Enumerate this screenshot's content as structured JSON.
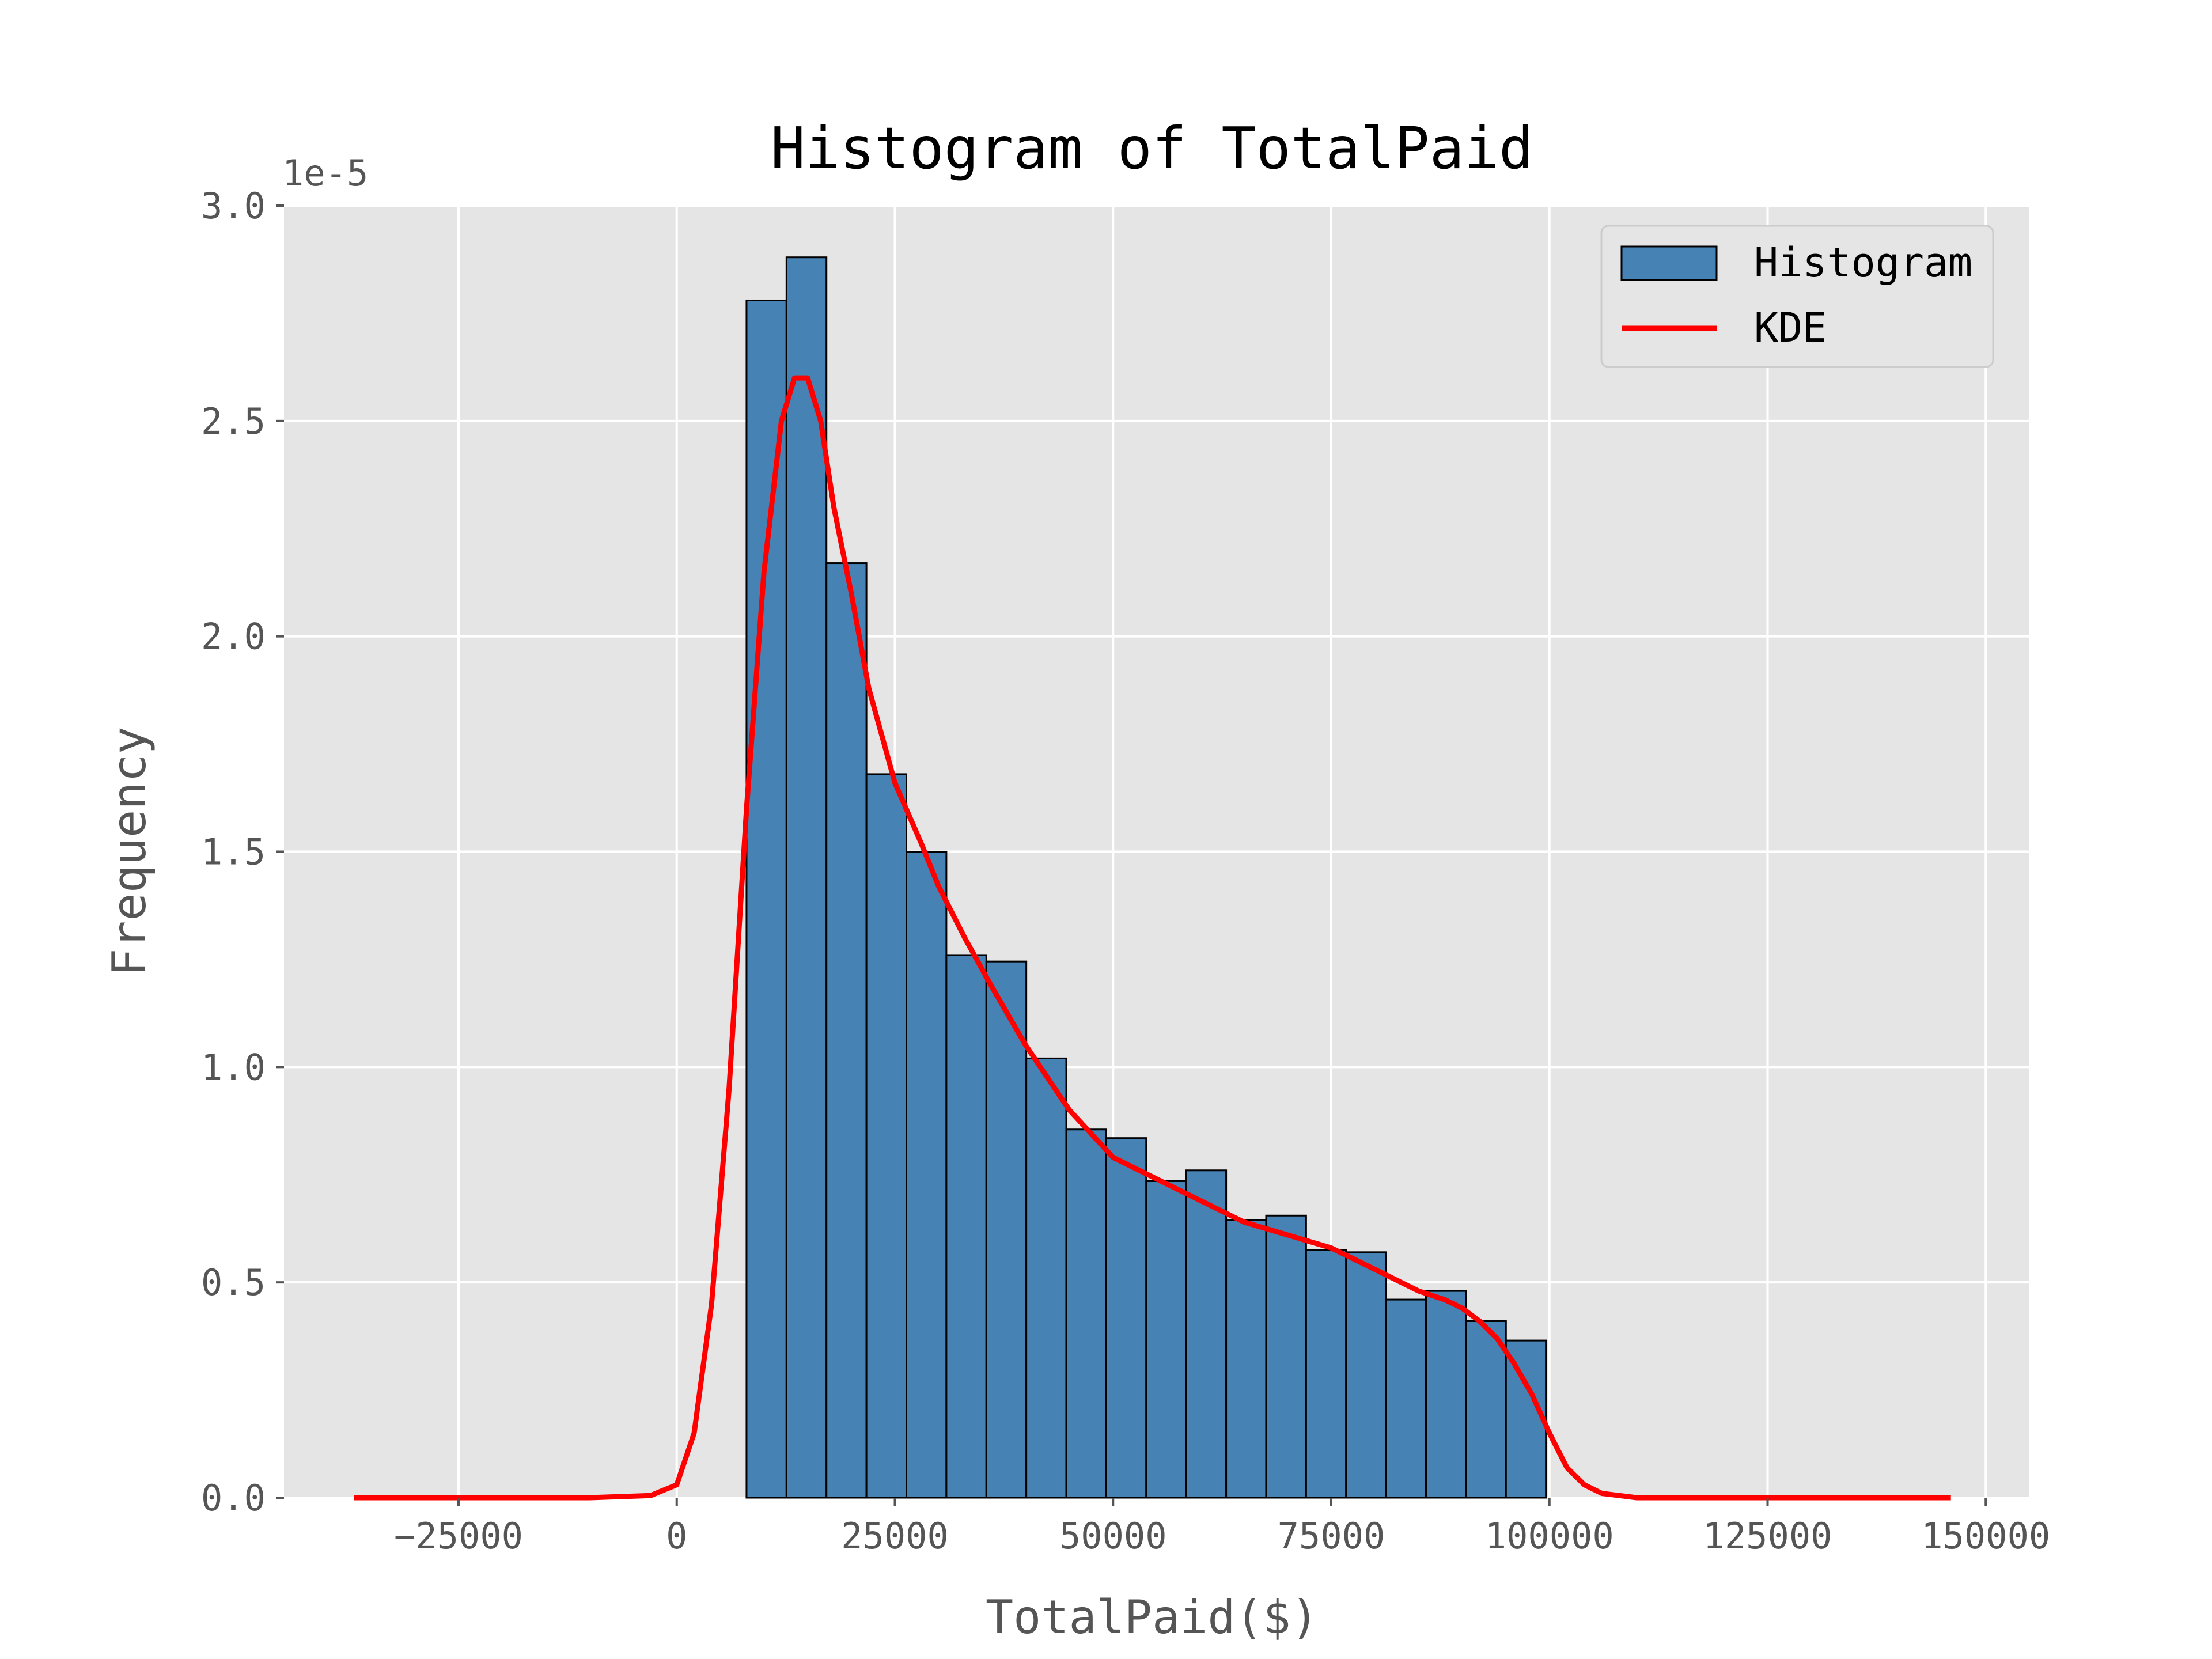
{
  "chart_data": {
    "type": "bar",
    "title": "Histogram of TotalPaid",
    "xlabel": "TotalPaid($)",
    "ylabel": "Frequency",
    "y_multiplier_label": "1e-5",
    "xlim": [
      -45000,
      155000
    ],
    "ylim": [
      0,
      3.0
    ],
    "y_scale": 1e-05,
    "xticks": [
      {
        "value": -25000,
        "label": "−25000"
      },
      {
        "value": 0,
        "label": "0"
      },
      {
        "value": 25000,
        "label": "25000"
      },
      {
        "value": 50000,
        "label": "50000"
      },
      {
        "value": 75000,
        "label": "75000"
      },
      {
        "value": 100000,
        "label": "100000"
      },
      {
        "value": 125000,
        "label": "125000"
      },
      {
        "value": 150000,
        "label": "150000"
      }
    ],
    "yticks": [
      {
        "value": 0.0,
        "label": "0.0"
      },
      {
        "value": 0.5,
        "label": "0.5"
      },
      {
        "value": 1.0,
        "label": "1.0"
      },
      {
        "value": 1.5,
        "label": "1.5"
      },
      {
        "value": 2.0,
        "label": "2.0"
      },
      {
        "value": 2.5,
        "label": "2.5"
      },
      {
        "value": 3.0,
        "label": "3.0"
      }
    ],
    "grid": true,
    "legend": {
      "placement": "top-right",
      "entries": [
        "Histogram",
        "KDE"
      ]
    },
    "colors": {
      "bar": "#4682b4",
      "kde": "#ff0000",
      "background": "#e5e5e5"
    },
    "histogram": {
      "name": "Histogram",
      "bin_edges": [
        8000,
        12580,
        17160,
        21740,
        26320,
        30900,
        35480,
        40060,
        44640,
        49220,
        53800,
        58380,
        62960,
        67540,
        72120,
        76700,
        81280,
        85860,
        90440,
        95020,
        99600
      ],
      "values": [
        2.78,
        2.88,
        2.17,
        1.68,
        1.5,
        1.26,
        1.245,
        1.02,
        0.855,
        0.835,
        0.735,
        0.76,
        0.645,
        0.655,
        0.575,
        0.57,
        0.46,
        0.48,
        0.41,
        0.365
      ]
    },
    "kde": {
      "name": "KDE",
      "x": [
        -37000,
        -25000,
        -10000,
        -3000,
        0,
        2000,
        4000,
        6000,
        8000,
        10000,
        12000,
        13500,
        15000,
        16500,
        18000,
        20000,
        22000,
        25000,
        28000,
        30000,
        33000,
        36000,
        40000,
        45000,
        50000,
        55000,
        60000,
        65000,
        70000,
        75000,
        80000,
        85000,
        88000,
        90000,
        92000,
        94000,
        96000,
        98000,
        100000,
        102000,
        104000,
        106000,
        110000,
        120000,
        135000,
        146000
      ],
      "y": [
        0,
        0,
        0,
        0.005,
        0.03,
        0.15,
        0.45,
        0.95,
        1.6,
        2.15,
        2.5,
        2.6,
        2.6,
        2.5,
        2.3,
        2.1,
        1.88,
        1.66,
        1.52,
        1.42,
        1.3,
        1.19,
        1.05,
        0.9,
        0.79,
        0.74,
        0.69,
        0.64,
        0.61,
        0.58,
        0.53,
        0.48,
        0.46,
        0.44,
        0.41,
        0.37,
        0.31,
        0.24,
        0.15,
        0.07,
        0.03,
        0.01,
        0,
        0,
        0,
        0
      ]
    }
  }
}
